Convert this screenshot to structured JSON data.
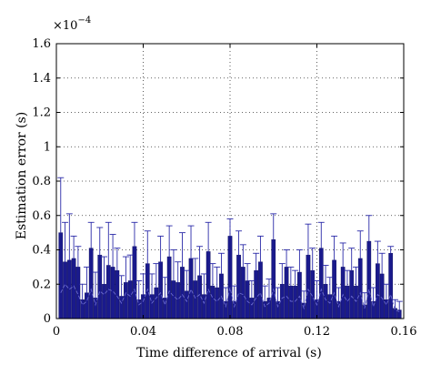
{
  "chart_data": {
    "type": "bar",
    "xlabel": "Time difference of arrival (s)",
    "ylabel": "Estimation error (s)",
    "scale_base": "×10",
    "scale_exponent": "−4",
    "xlim": [
      0,
      0.16
    ],
    "ylim": [
      0,
      1.6
    ],
    "x_ticks": [
      "0",
      "0.04",
      "0.08",
      "0.12",
      "0.16"
    ],
    "y_ticks": [
      "0",
      "0.2",
      "0.4",
      "0.6",
      "0.8",
      "1",
      "1.2",
      "1.4",
      "1.6"
    ],
    "grid": true,
    "grid_style": "dotted",
    "bar_color": "#1a1a8c",
    "series": [
      {
        "bar_width": 0.0018,
        "x": [
          0.002,
          0.004,
          0.006,
          0.008,
          0.01,
          0.012,
          0.014,
          0.016,
          0.018,
          0.02,
          0.022,
          0.024,
          0.026,
          0.028,
          0.03,
          0.032,
          0.034,
          0.036,
          0.038,
          0.04,
          0.042,
          0.044,
          0.046,
          0.048,
          0.05,
          0.052,
          0.054,
          0.056,
          0.058,
          0.06,
          0.062,
          0.064,
          0.066,
          0.068,
          0.07,
          0.072,
          0.074,
          0.076,
          0.078,
          0.08,
          0.082,
          0.084,
          0.086,
          0.088,
          0.09,
          0.092,
          0.094,
          0.096,
          0.098,
          0.1,
          0.102,
          0.104,
          0.106,
          0.108,
          0.11,
          0.112,
          0.114,
          0.116,
          0.118,
          0.12,
          0.122,
          0.124,
          0.126,
          0.128,
          0.13,
          0.132,
          0.134,
          0.136,
          0.138,
          0.14,
          0.142,
          0.144,
          0.146,
          0.148,
          0.15,
          0.152,
          0.154,
          0.156,
          0.158
        ],
        "values": [
          0.5,
          0.33,
          0.34,
          0.35,
          0.3,
          0.11,
          0.15,
          0.41,
          0.12,
          0.37,
          0.2,
          0.31,
          0.3,
          0.28,
          0.13,
          0.21,
          0.22,
          0.42,
          0.11,
          0.14,
          0.32,
          0.14,
          0.18,
          0.33,
          0.12,
          0.36,
          0.22,
          0.21,
          0.3,
          0.16,
          0.35,
          0.22,
          0.25,
          0.14,
          0.39,
          0.19,
          0.18,
          0.26,
          0.1,
          0.48,
          0.1,
          0.37,
          0.3,
          0.22,
          0.12,
          0.28,
          0.33,
          0.1,
          0.12,
          0.46,
          0.1,
          0.2,
          0.3,
          0.19,
          0.19,
          0.27,
          0.09,
          0.37,
          0.28,
          0.11,
          0.41,
          0.2,
          0.14,
          0.34,
          0.1,
          0.3,
          0.19,
          0.28,
          0.19,
          0.35,
          0.08,
          0.45,
          0.1,
          0.32,
          0.26,
          0.11,
          0.38,
          0.06,
          0.05
        ],
        "error_upper": [
          0.82,
          0.56,
          0.61,
          0.48,
          0.42,
          0.2,
          0.3,
          0.56,
          0.27,
          0.53,
          0.36,
          0.56,
          0.49,
          0.41,
          0.25,
          0.36,
          0.37,
          0.56,
          0.22,
          0.26,
          0.51,
          0.26,
          0.32,
          0.48,
          0.24,
          0.54,
          0.4,
          0.33,
          0.5,
          0.28,
          0.54,
          0.35,
          0.42,
          0.26,
          0.56,
          0.32,
          0.3,
          0.38,
          0.18,
          0.58,
          0.19,
          0.51,
          0.43,
          0.32,
          0.22,
          0.38,
          0.48,
          0.19,
          0.23,
          0.61,
          0.18,
          0.32,
          0.4,
          0.3,
          0.28,
          0.4,
          0.16,
          0.55,
          0.41,
          0.22,
          0.56,
          0.31,
          0.24,
          0.48,
          0.18,
          0.44,
          0.28,
          0.41,
          0.3,
          0.51,
          0.15,
          0.6,
          0.18,
          0.45,
          0.38,
          0.2,
          0.42,
          0.11,
          0.1
        ]
      }
    ],
    "dashed_series": {
      "values": [
        0.15,
        0.2,
        0.17,
        0.19,
        0.14,
        0.08,
        0.1,
        0.17,
        0.08,
        0.16,
        0.14,
        0.17,
        0.16,
        0.13,
        0.09,
        0.15,
        0.13,
        0.17,
        0.08,
        0.1,
        0.17,
        0.09,
        0.12,
        0.15,
        0.08,
        0.16,
        0.13,
        0.11,
        0.14,
        0.1,
        0.17,
        0.12,
        0.14,
        0.09,
        0.17,
        0.12,
        0.1,
        0.13,
        0.07,
        0.18,
        0.07,
        0.15,
        0.14,
        0.1,
        0.08,
        0.12,
        0.15,
        0.07,
        0.09,
        0.17,
        0.07,
        0.12,
        0.13,
        0.1,
        0.1,
        0.13,
        0.06,
        0.17,
        0.13,
        0.08,
        0.17,
        0.11,
        0.09,
        0.15,
        0.07,
        0.14,
        0.1,
        0.13,
        0.1,
        0.15,
        0.06,
        0.17,
        0.07,
        0.14,
        0.12,
        0.08,
        0.14,
        0.05,
        0.04
      ]
    }
  }
}
